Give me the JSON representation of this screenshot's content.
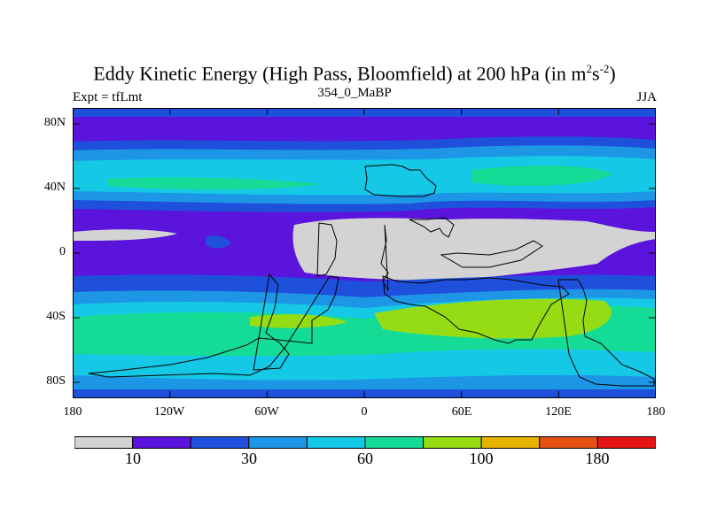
{
  "title": {
    "main": "Eddy Kinetic Energy (High Pass, Bloomfield) at 200 hPa (in m",
    "sup1": "2",
    "mid": "s",
    "sup2": "-2",
    "end": ")"
  },
  "subtitle_left": "Expt = tfLmt",
  "subtitle_center": "354_0_MaBP",
  "subtitle_right": "JJA",
  "lat_labels": [
    "80N",
    "40N",
    "0",
    "40S",
    "80S"
  ],
  "lon_labels": [
    "180",
    "120W",
    "60W",
    "0",
    "60E",
    "120E",
    "180"
  ],
  "colorbar": {
    "colors": [
      "#d3d3d3",
      "#5a14dc",
      "#1e50dc",
      "#1e96e6",
      "#14c8e6",
      "#14dc96",
      "#96dc14",
      "#e6b400",
      "#e65014",
      "#e61414"
    ],
    "labels": [
      "10",
      "30",
      "60",
      "100",
      "180"
    ]
  },
  "legend_colors": {
    "gray": "#d3d3d3",
    "violet": "#5a14dc",
    "blue": "#1e50dc",
    "mid_blue": "#1e96e6",
    "cyan": "#14c8e6",
    "green": "#14dc96",
    "yellow_green": "#96dc14"
  }
}
